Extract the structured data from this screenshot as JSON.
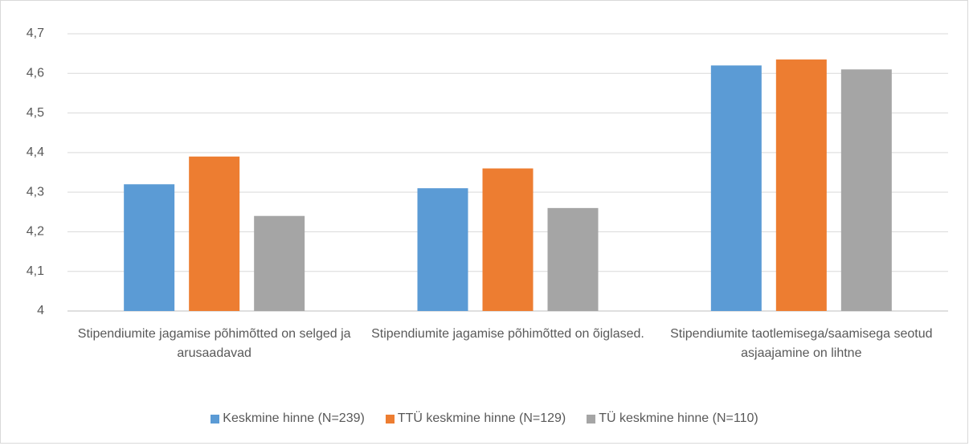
{
  "chart_data": {
    "type": "bar",
    "categories": [
      "Stipendiumite jagamise põhimõtted on selged ja arusaadavad",
      "Stipendiumite jagamise põhimõtted on õiglased.",
      "Stipendiumite taotlemisega/saamisega seotud asjaajamine on lihtne"
    ],
    "series": [
      {
        "name": "Keskmine hinne (N=239)",
        "color": "#5b9bd5",
        "values": [
          4.32,
          4.31,
          4.62
        ]
      },
      {
        "name": "TTÜ keskmine hinne (N=129)",
        "color": "#ed7d31",
        "values": [
          4.39,
          4.36,
          4.635
        ]
      },
      {
        "name": "TÜ keskmine hinne (N=110)",
        "color": "#a5a5a5",
        "values": [
          4.24,
          4.26,
          4.61
        ]
      }
    ],
    "ylim": [
      4,
      4.7
    ],
    "yticks": [
      4,
      {
        "value": 4.1,
        "label": "4,1"
      },
      {
        "value": 4.2,
        "label": "4,2"
      },
      {
        "value": 4.3,
        "label": "4,3"
      },
      {
        "value": 4.4,
        "label": "4,4"
      },
      {
        "value": 4.5,
        "label": "4,5"
      },
      {
        "value": 4.6,
        "label": "4,6"
      },
      {
        "value": 4.7,
        "label": "4,7"
      }
    ],
    "grid": true,
    "legend": "bottom"
  }
}
